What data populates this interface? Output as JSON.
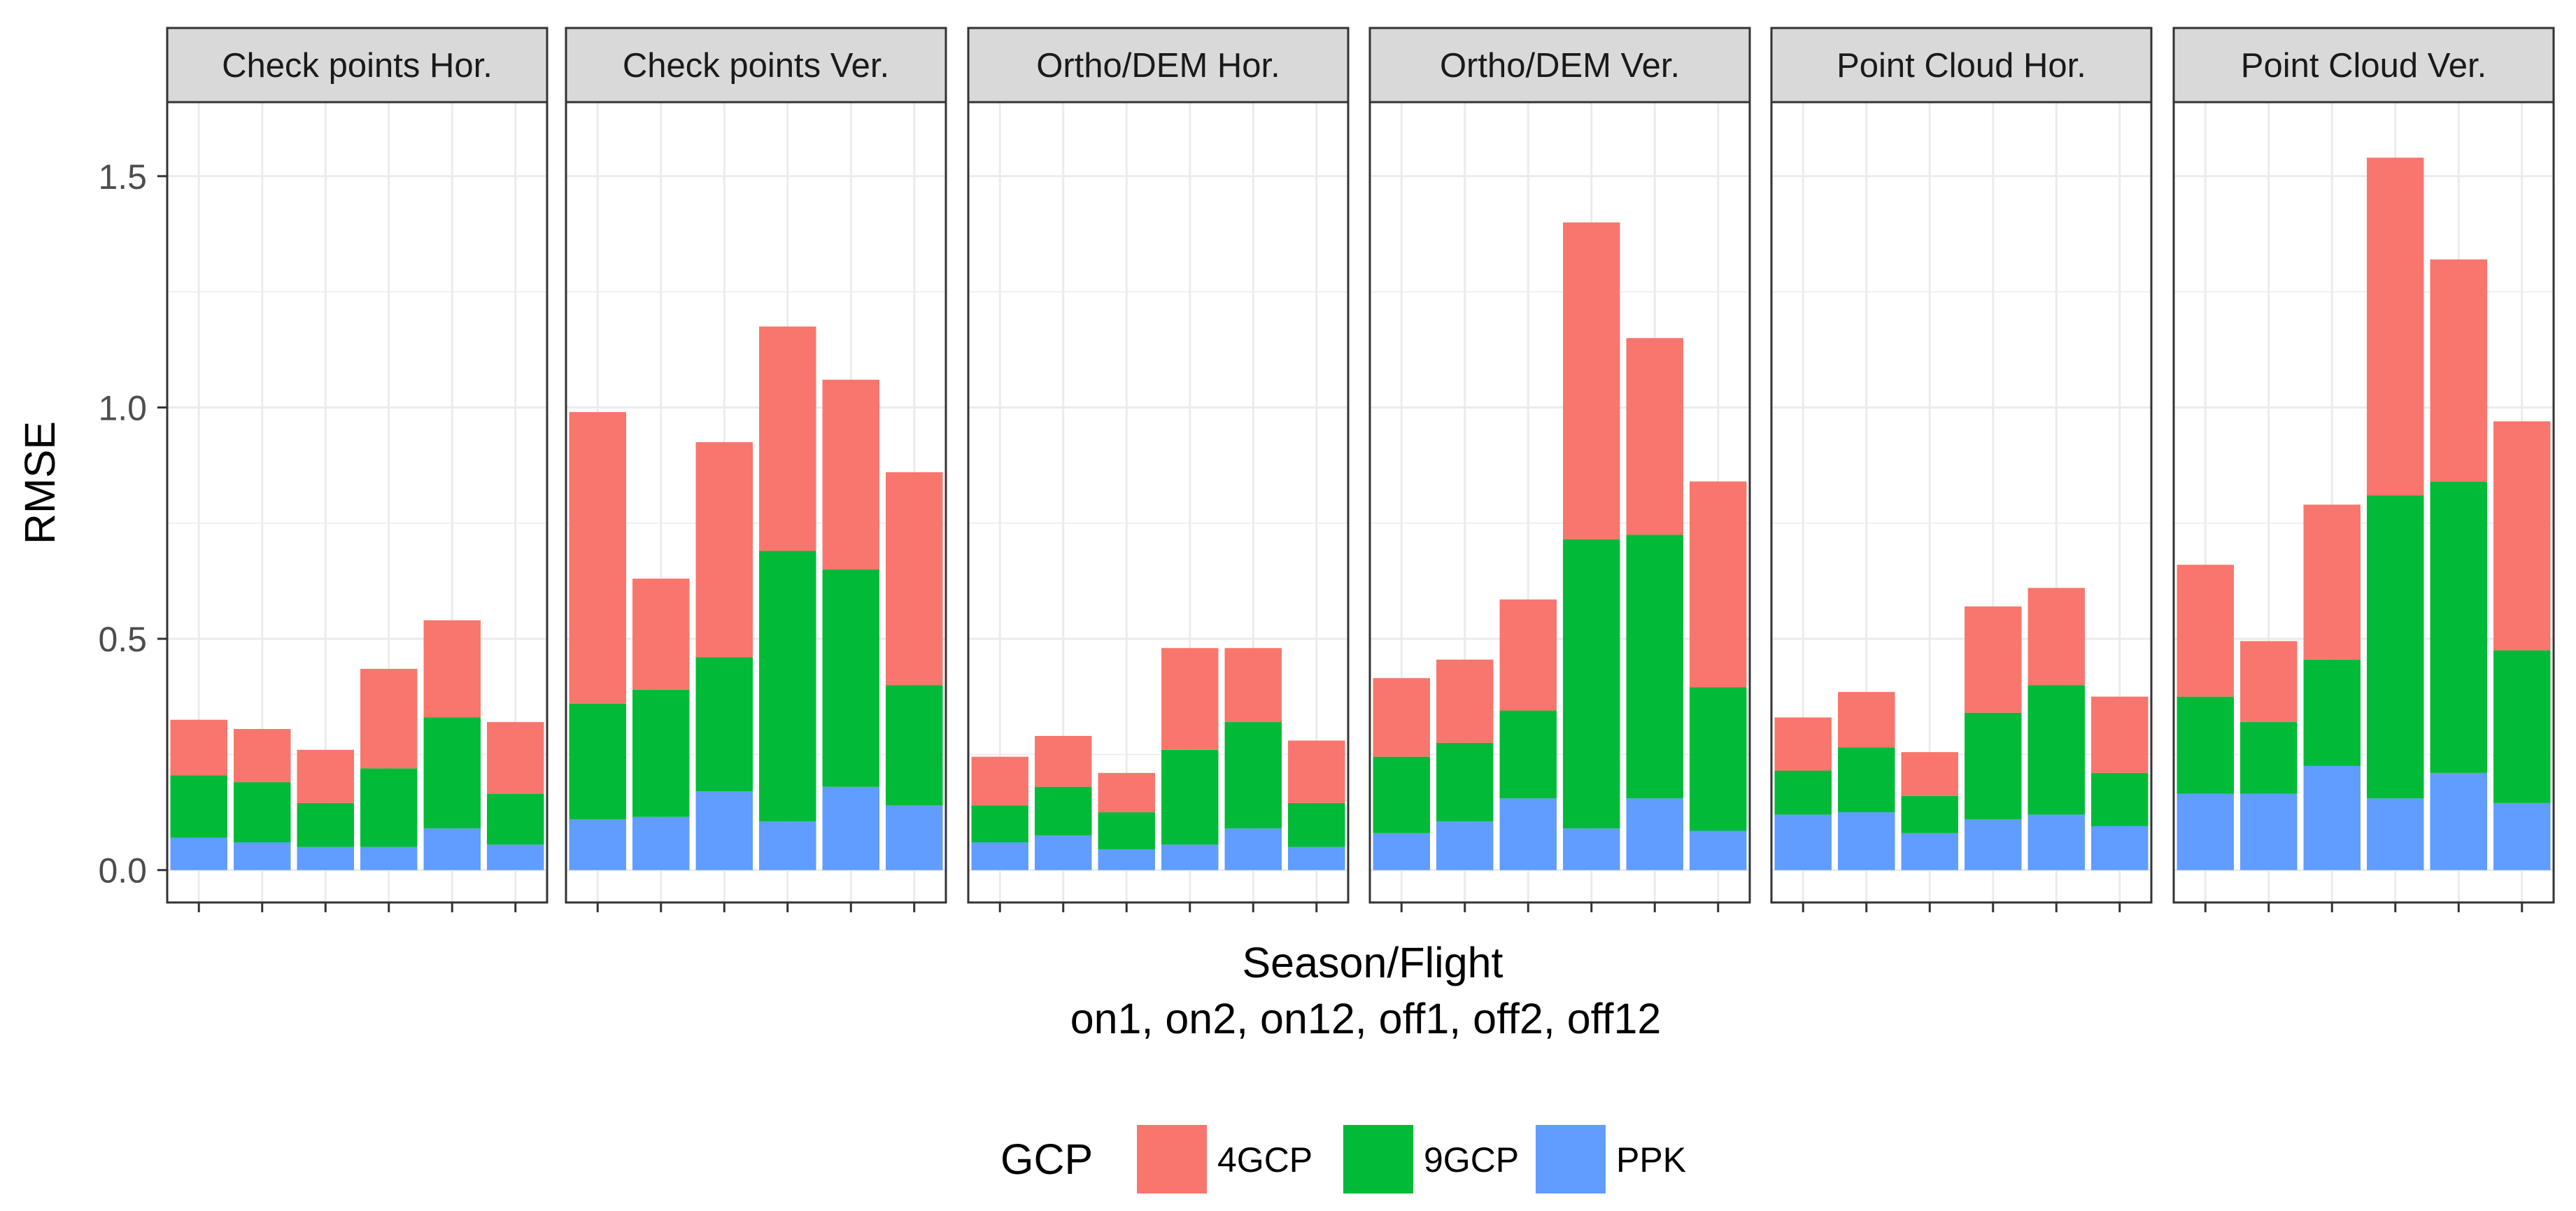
{
  "chart_data": {
    "type": "bar",
    "stacked": true,
    "facets": [
      "Check points Hor.",
      "Check points Ver.",
      "Ortho/DEM Hor.",
      "Ortho/DEM Ver.",
      "Point Cloud Hor.",
      "Point Cloud Ver."
    ],
    "categories": [
      "on1",
      "on2",
      "on12",
      "off1",
      "off2",
      "off12"
    ],
    "ylabel": "RMSE",
    "xlabel_line1": "Season/Flight",
    "xlabel_line2": "on1, on2, on12, off1, off2, off12",
    "ylim": [
      -0.07,
      1.66
    ],
    "yticks": [
      0.0,
      0.5,
      1.0,
      1.5
    ],
    "ytick_labels": [
      "0.0",
      "0.5",
      "1.0",
      "1.5"
    ],
    "grid": true,
    "legend": {
      "title": "GCP",
      "position": "bottom",
      "entries": [
        {
          "label": "4GCP",
          "color": "#F8766D"
        },
        {
          "label": "9GCP",
          "color": "#00BA38"
        },
        {
          "label": "PPK",
          "color": "#619CFF"
        }
      ]
    },
    "series": [
      {
        "name": "PPK",
        "color": "#619CFF",
        "stack_order": 0,
        "values": [
          [
            0.07,
            0.06,
            0.05,
            0.05,
            0.09,
            0.055
          ],
          [
            0.11,
            0.115,
            0.17,
            0.105,
            0.18,
            0.14
          ],
          [
            0.06,
            0.075,
            0.045,
            0.055,
            0.09,
            0.05
          ],
          [
            0.08,
            0.105,
            0.155,
            0.09,
            0.155,
            0.085
          ],
          [
            0.12,
            0.125,
            0.08,
            0.11,
            0.12,
            0.095
          ],
          [
            0.165,
            0.165,
            0.225,
            0.155,
            0.21,
            0.145
          ]
        ]
      },
      {
        "name": "9GCP",
        "color": "#00BA38",
        "stack_order": 1,
        "values": [
          [
            0.135,
            0.13,
            0.095,
            0.17,
            0.24,
            0.11
          ],
          [
            0.25,
            0.275,
            0.29,
            0.585,
            0.47,
            0.26
          ],
          [
            0.08,
            0.105,
            0.08,
            0.205,
            0.23,
            0.095
          ],
          [
            0.165,
            0.17,
            0.19,
            0.625,
            0.57,
            0.31
          ],
          [
            0.095,
            0.14,
            0.08,
            0.23,
            0.28,
            0.115
          ],
          [
            0.21,
            0.155,
            0.23,
            0.655,
            0.63,
            0.33
          ]
        ]
      },
      {
        "name": "4GCP",
        "color": "#F8766D",
        "stack_order": 2,
        "values": [
          [
            0.12,
            0.115,
            0.115,
            0.215,
            0.21,
            0.155
          ],
          [
            0.63,
            0.24,
            0.465,
            0.485,
            0.41,
            0.46
          ],
          [
            0.105,
            0.11,
            0.085,
            0.22,
            0.16,
            0.135
          ],
          [
            0.17,
            0.18,
            0.24,
            0.685,
            0.425,
            0.445
          ],
          [
            0.115,
            0.12,
            0.095,
            0.23,
            0.21,
            0.165
          ],
          [
            0.285,
            0.175,
            0.335,
            0.73,
            0.48,
            0.495
          ]
        ]
      }
    ]
  }
}
